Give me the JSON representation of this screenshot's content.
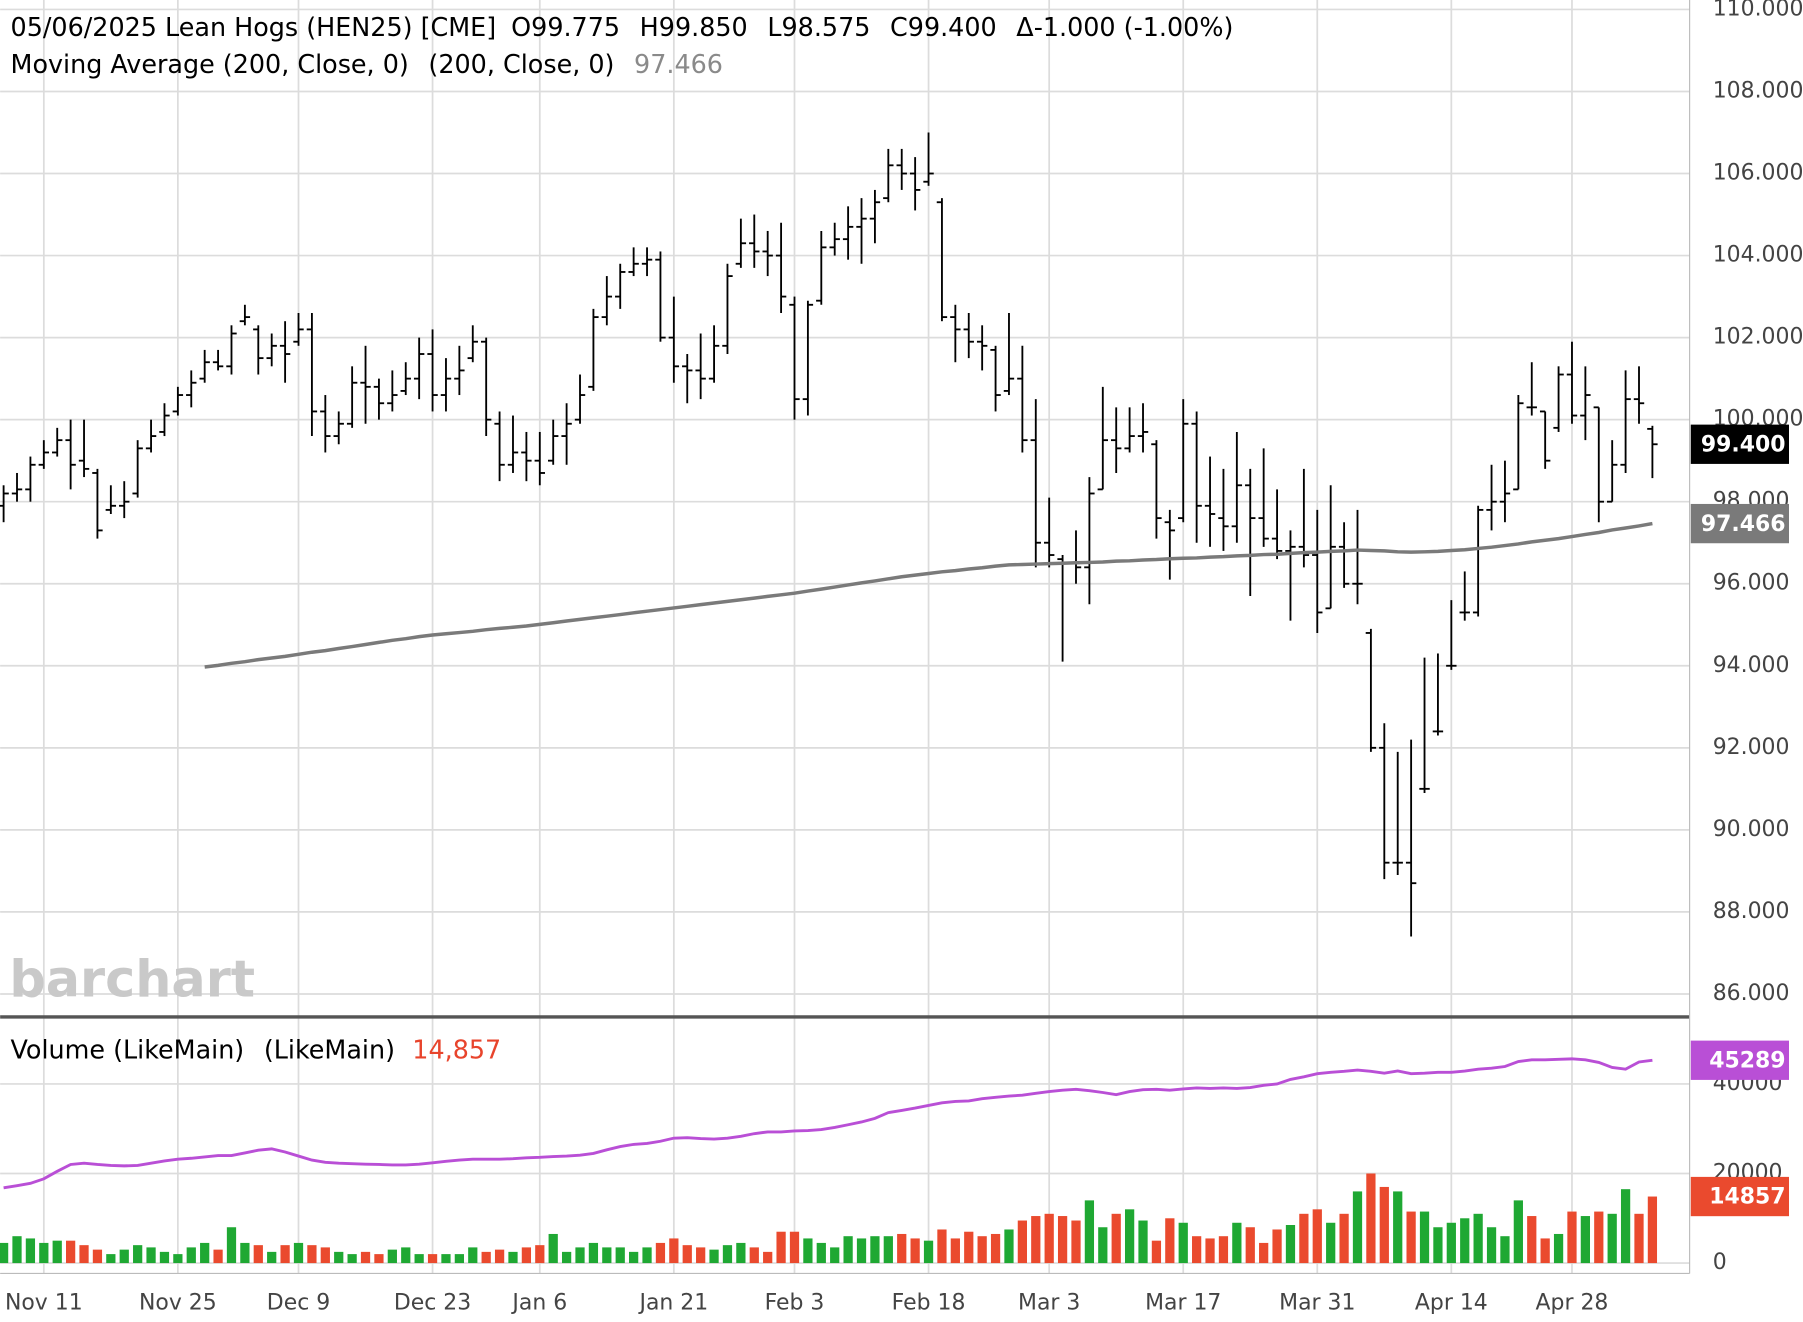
{
  "chart_data": [
    {
      "type": "ohlc",
      "title": "05/06/2025 Lean Hogs (HEN25) [CME]",
      "quote_labels": [
        "O99.775",
        "H99.850",
        "L98.575",
        "C99.400",
        "Δ-1.000 (-1.00%)"
      ],
      "watermark": "barchart",
      "categories": [
        null,
        null,
        null,
        "Nov 11",
        null,
        null,
        null,
        null,
        null,
        null,
        null,
        null,
        null,
        "Nov 25",
        null,
        null,
        null,
        null,
        null,
        null,
        null,
        null,
        "Dec 9",
        null,
        null,
        null,
        null,
        null,
        null,
        null,
        null,
        null,
        "Dec 23",
        null,
        null,
        null,
        null,
        null,
        null,
        null,
        "Jan 6",
        null,
        null,
        null,
        null,
        null,
        null,
        null,
        null,
        null,
        "Jan 21",
        null,
        null,
        null,
        null,
        null,
        null,
        null,
        null,
        "Feb 3",
        null,
        null,
        null,
        null,
        null,
        null,
        null,
        null,
        null,
        "Feb 18",
        null,
        null,
        null,
        null,
        null,
        null,
        null,
        null,
        "Mar 3",
        null,
        null,
        null,
        null,
        null,
        null,
        null,
        null,
        null,
        "Mar 17",
        null,
        null,
        null,
        null,
        null,
        null,
        null,
        null,
        null,
        "Mar 31",
        null,
        null,
        null,
        null,
        null,
        null,
        null,
        null,
        null,
        "Apr 14",
        null,
        null,
        null,
        null,
        null,
        null,
        null,
        null,
        "Apr 28",
        null,
        null,
        null,
        null,
        null,
        null
      ],
      "ohlc": {
        "color": "#000000",
        "last_label": "99.400",
        "open": [
          97.9,
          98.2,
          98.3,
          98.9,
          99.2,
          99.5,
          99.0,
          98.7,
          97.8,
          97.9,
          98.2,
          99.3,
          99.7,
          100.2,
          100.6,
          101.0,
          101.4,
          101.3,
          102.4,
          102.2,
          101.5,
          101.8,
          101.9,
          102.2,
          100.2,
          99.6,
          99.9,
          100.9,
          100.8,
          100.4,
          100.7,
          101.0,
          101.6,
          100.6,
          101.0,
          101.5,
          101.9,
          99.9,
          98.9,
          99.2,
          99.0,
          99.0,
          99.6,
          100.0,
          100.8,
          102.5,
          103.0,
          103.6,
          103.8,
          103.9,
          102.0,
          101.3,
          101.2,
          101.0,
          101.8,
          103.8,
          104.3,
          104.1,
          104.0,
          102.8,
          100.5,
          102.9,
          104.2,
          104.4,
          104.7,
          104.9,
          105.4,
          106.2,
          106.0,
          105.8,
          105.3,
          102.5,
          102.2,
          101.9,
          101.7,
          100.7,
          101.0,
          99.5,
          97.0,
          96.6,
          96.5,
          96.4,
          98.3,
          99.5,
          99.3,
          99.6,
          99.4,
          97.5,
          97.6,
          99.9,
          97.9,
          97.6,
          97.4,
          98.4,
          97.6,
          97.1,
          96.8,
          96.9,
          96.7,
          95.4,
          96.9,
          96.0,
          94.8,
          92.0,
          89.2,
          89.2,
          91.0,
          92.4,
          94.0,
          95.3,
          95.3,
          97.8,
          98.0,
          98.3,
          100.3,
          100.2,
          99.8,
          101.1,
          100.1,
          100.3,
          98.0,
          98.9,
          100.5,
          99.775
        ],
        "high": [
          98.4,
          98.7,
          99.1,
          99.5,
          99.8,
          100.0,
          100.0,
          98.8,
          98.4,
          98.5,
          99.5,
          100.0,
          100.4,
          100.8,
          101.2,
          101.7,
          101.7,
          102.3,
          102.8,
          102.3,
          102.1,
          102.4,
          102.6,
          102.6,
          100.6,
          100.2,
          101.3,
          101.8,
          101.0,
          101.2,
          101.4,
          102.0,
          102.2,
          101.5,
          101.8,
          102.3,
          102.0,
          100.2,
          100.1,
          99.7,
          99.7,
          100.0,
          100.4,
          101.1,
          102.7,
          103.5,
          103.8,
          104.2,
          104.2,
          104.1,
          103.0,
          101.6,
          102.1,
          102.3,
          103.8,
          104.9,
          105.0,
          104.6,
          104.8,
          103.0,
          102.9,
          104.6,
          104.8,
          105.2,
          105.4,
          105.6,
          106.6,
          106.6,
          106.4,
          107.0,
          105.4,
          102.8,
          102.6,
          102.3,
          101.8,
          102.6,
          101.8,
          100.5,
          98.1,
          96.7,
          97.3,
          98.6,
          100.8,
          100.3,
          100.3,
          100.4,
          99.5,
          97.8,
          100.5,
          100.2,
          99.1,
          98.8,
          99.7,
          98.8,
          99.3,
          98.3,
          97.3,
          98.8,
          97.8,
          98.4,
          97.5,
          97.8,
          94.9,
          92.6,
          91.9,
          92.2,
          94.2,
          94.3,
          95.6,
          96.3,
          97.9,
          98.9,
          99.0,
          100.6,
          101.4,
          100.2,
          101.3,
          101.9,
          101.3,
          100.3,
          99.5,
          101.2,
          101.3,
          99.85
        ],
        "low": [
          97.5,
          98.0,
          98.0,
          98.8,
          99.1,
          98.3,
          98.6,
          97.1,
          97.7,
          97.6,
          98.1,
          99.2,
          99.6,
          100.1,
          100.3,
          100.9,
          101.2,
          101.1,
          102.3,
          101.1,
          101.3,
          100.9,
          101.8,
          99.6,
          99.2,
          99.4,
          99.8,
          99.9,
          100.0,
          100.2,
          100.6,
          100.5,
          100.2,
          100.2,
          100.6,
          101.4,
          99.6,
          98.5,
          98.7,
          98.5,
          98.4,
          98.9,
          98.9,
          99.9,
          100.7,
          102.3,
          102.7,
          103.5,
          103.5,
          101.9,
          100.9,
          100.4,
          100.5,
          100.9,
          101.6,
          103.7,
          103.7,
          103.5,
          102.6,
          100.0,
          100.1,
          102.8,
          104.0,
          103.9,
          103.8,
          104.3,
          105.3,
          105.6,
          105.1,
          105.7,
          102.4,
          101.4,
          101.5,
          101.2,
          100.2,
          100.6,
          99.2,
          96.4,
          96.4,
          94.1,
          96.0,
          95.5,
          98.3,
          98.7,
          99.2,
          99.2,
          97.1,
          96.1,
          97.5,
          97.0,
          96.9,
          96.8,
          97.0,
          95.7,
          96.9,
          96.6,
          95.1,
          96.4,
          94.8,
          95.4,
          95.9,
          95.5,
          91.9,
          88.8,
          88.9,
          87.4,
          90.9,
          92.3,
          93.9,
          95.1,
          95.2,
          97.3,
          97.5,
          98.3,
          100.1,
          98.8,
          99.7,
          99.9,
          99.5,
          97.5,
          98.0,
          98.7,
          99.9,
          98.575
        ],
        "close": [
          98.2,
          98.3,
          98.9,
          99.2,
          99.5,
          98.9,
          98.8,
          97.3,
          97.9,
          98.0,
          99.3,
          99.6,
          100.1,
          100.6,
          100.9,
          101.4,
          101.3,
          102.1,
          102.5,
          101.5,
          101.8,
          101.6,
          102.2,
          100.2,
          99.6,
          99.9,
          100.9,
          100.8,
          100.4,
          100.6,
          101.0,
          101.6,
          100.6,
          101.0,
          101.2,
          101.9,
          100.0,
          98.9,
          99.2,
          99.0,
          98.7,
          99.6,
          99.9,
          100.6,
          102.5,
          103.0,
          103.6,
          103.8,
          103.9,
          102.0,
          101.3,
          101.2,
          101.0,
          101.8,
          103.5,
          104.3,
          104.1,
          104.0,
          103.0,
          100.5,
          102.8,
          104.2,
          104.4,
          104.7,
          104.9,
          105.3,
          106.2,
          106.0,
          105.6,
          106.0,
          102.5,
          102.2,
          101.9,
          101.8,
          100.6,
          101.0,
          99.5,
          97.0,
          96.7,
          96.5,
          96.4,
          98.2,
          99.5,
          99.3,
          99.6,
          99.7,
          97.6,
          97.3,
          99.9,
          97.9,
          97.7,
          97.4,
          98.4,
          97.6,
          97.1,
          96.8,
          96.9,
          96.7,
          95.3,
          96.9,
          96.0,
          96.0,
          92.0,
          89.2,
          89.2,
          88.7,
          91.0,
          92.4,
          94.0,
          95.3,
          97.8,
          98.0,
          98.2,
          100.4,
          100.3,
          99.0,
          101.1,
          100.1,
          100.6,
          98.0,
          98.9,
          100.5,
          100.4,
          99.4
        ]
      },
      "series": [
        {
          "name": "Moving Average (200, Close, 0)",
          "params": "(200, Close, 0)",
          "color": "#7a7a7a",
          "values": [
            null,
            null,
            null,
            null,
            null,
            null,
            null,
            null,
            null,
            null,
            null,
            null,
            null,
            null,
            null,
            93.97,
            94.01,
            94.06,
            94.1,
            94.15,
            94.19,
            94.23,
            94.28,
            94.33,
            94.37,
            94.42,
            94.47,
            94.52,
            94.57,
            94.62,
            94.66,
            94.71,
            94.75,
            94.78,
            94.81,
            94.84,
            94.88,
            94.91,
            94.94,
            94.97,
            95.01,
            95.05,
            95.09,
            95.13,
            95.17,
            95.21,
            95.25,
            95.29,
            95.33,
            95.37,
            95.41,
            95.45,
            95.49,
            95.53,
            95.57,
            95.61,
            95.65,
            95.69,
            95.73,
            95.77,
            95.82,
            95.87,
            95.92,
            95.97,
            96.02,
            96.07,
            96.12,
            96.17,
            96.21,
            96.25,
            96.29,
            96.32,
            96.36,
            96.39,
            96.43,
            96.46,
            96.47,
            96.48,
            96.49,
            96.5,
            96.51,
            96.52,
            96.53,
            96.55,
            96.56,
            96.58,
            96.59,
            96.61,
            96.62,
            96.63,
            96.65,
            96.66,
            96.68,
            96.69,
            96.71,
            96.72,
            96.74,
            96.76,
            96.77,
            96.79,
            96.8,
            96.82,
            96.81,
            96.8,
            96.78,
            96.77,
            96.78,
            96.79,
            96.81,
            96.83,
            96.86,
            96.89,
            96.93,
            96.97,
            97.02,
            97.06,
            97.1,
            97.15,
            97.2,
            97.25,
            97.31,
            97.36,
            97.41,
            97.466
          ]
        }
      ],
      "ylim": [
        85.44,
        110.23
      ],
      "yticks": [
        {
          "value": 86,
          "label": "86.000"
        },
        {
          "value": 88,
          "label": "88.000"
        },
        {
          "value": 90,
          "label": "90.000"
        },
        {
          "value": 92,
          "label": "92.000"
        },
        {
          "value": 94,
          "label": "94.000"
        },
        {
          "value": 96,
          "label": "96.000"
        },
        {
          "value": 98,
          "label": "98.000"
        },
        {
          "value": 100,
          "label": "100.000"
        },
        {
          "value": 102,
          "label": "102.000"
        },
        {
          "value": 104,
          "label": "104.000"
        },
        {
          "value": 106,
          "label": "106.000"
        },
        {
          "value": 108,
          "label": "108.000"
        },
        {
          "value": 110,
          "label": "110.000"
        }
      ],
      "grid": true
    },
    {
      "type": "bar",
      "title": "Volume (LikeMain)",
      "params": "(LikeMain)",
      "last_label": "14,857",
      "up_color": "#1fa833",
      "down_color": "#ea4a2e",
      "values": [
        4500,
        6000,
        5500,
        4500,
        5000,
        5000,
        4000,
        3000,
        2000,
        3000,
        4000,
        3500,
        2500,
        2000,
        3500,
        4500,
        3000,
        8000,
        4500,
        4000,
        2500,
        4000,
        4500,
        4000,
        3500,
        2500,
        2000,
        2500,
        2000,
        3000,
        3500,
        2000,
        2000,
        2000,
        2000,
        3500,
        2500,
        3000,
        2500,
        3500,
        4000,
        6500,
        2500,
        3500,
        4500,
        3500,
        3500,
        2500,
        3500,
        4500,
        5500,
        4000,
        3500,
        3000,
        4000,
        4500,
        3500,
        2500,
        7000,
        7000,
        5500,
        4500,
        3500,
        6000,
        5500,
        6000,
        6000,
        6500,
        5500,
        5000,
        7500,
        5500,
        7000,
        6000,
        6500,
        7500,
        9500,
        10500,
        11000,
        10500,
        9500,
        14000,
        8000,
        11000,
        12000,
        9500,
        5000,
        10000,
        9000,
        6000,
        5500,
        6000,
        9000,
        8000,
        4500,
        7500,
        8500,
        11000,
        12000,
        9000,
        11000,
        16000,
        20000,
        17000,
        16000,
        11500,
        11500,
        8000,
        9000,
        10000,
        11000,
        8000,
        6000,
        14000,
        10500,
        5500,
        6500,
        11500,
        10500,
        11500,
        11000,
        16500,
        11000,
        14857
      ],
      "average": {
        "color": "#b94fd6",
        "values": [
          16800,
          17300,
          17800,
          18800,
          20500,
          22000,
          22300,
          22000,
          21800,
          21700,
          21800,
          22300,
          22800,
          23200,
          23400,
          23700,
          24000,
          24000,
          24600,
          25200,
          25500,
          24800,
          23900,
          23000,
          22500,
          22300,
          22200,
          22100,
          22000,
          21900,
          21900,
          22100,
          22400,
          22700,
          23000,
          23200,
          23200,
          23200,
          23300,
          23500,
          23600,
          23800,
          23900,
          24100,
          24500,
          25300,
          26000,
          26500,
          26700,
          27200,
          27900,
          28000,
          27800,
          27700,
          27900,
          28300,
          28900,
          29300,
          29300,
          29500,
          29600,
          29800,
          30300,
          30900,
          31500,
          32300,
          33600,
          34100,
          34600,
          35200,
          35800,
          36100,
          36200,
          36700,
          37000,
          37300,
          37500,
          37900,
          38300,
          38600,
          38800,
          38500,
          38100,
          37600,
          38300,
          38700,
          38800,
          38600,
          38900,
          39100,
          39000,
          39100,
          39000,
          39200,
          39700,
          40000,
          41000,
          41600,
          42300,
          42600,
          42800,
          43100,
          42800,
          42400,
          42900,
          42300,
          42400,
          42600,
          42600,
          42900,
          43300,
          43500,
          43900,
          45000,
          45400,
          45400,
          45500,
          45600,
          45400,
          44800,
          43700,
          43300,
          44900,
          45289
        ]
      },
      "ylim": [
        -1806,
        54450
      ],
      "yticks": [
        0,
        20000,
        40000
      ],
      "grid": true
    }
  ]
}
